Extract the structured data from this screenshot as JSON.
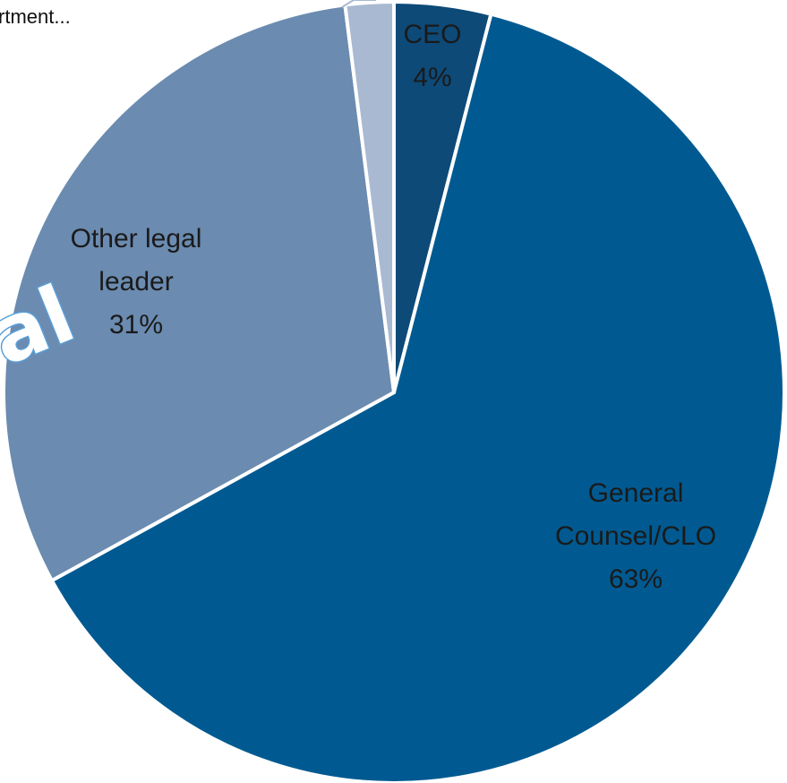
{
  "header_fragment": "rtment...",
  "watermark_text": "al",
  "chart_data": {
    "type": "pie",
    "title": "",
    "start_angle_deg": 0,
    "direction": "clockwise",
    "slices": [
      {
        "label_lines": [
          "CEO",
          "4%"
        ],
        "category": "CEO",
        "value": 4,
        "color": "#0d4a78"
      },
      {
        "label_lines": [
          "General",
          "Counsel/CLO",
          "63%"
        ],
        "category": "General Counsel/CLO",
        "value": 63,
        "color": "#005a91"
      },
      {
        "label_lines": [
          "Other legal",
          "leader",
          "31%"
        ],
        "category": "Other legal leader",
        "value": 31,
        "color": "#6b8bb0"
      },
      {
        "label_lines": [],
        "category": "",
        "value": 2,
        "color": "#a9b9d1"
      }
    ]
  }
}
